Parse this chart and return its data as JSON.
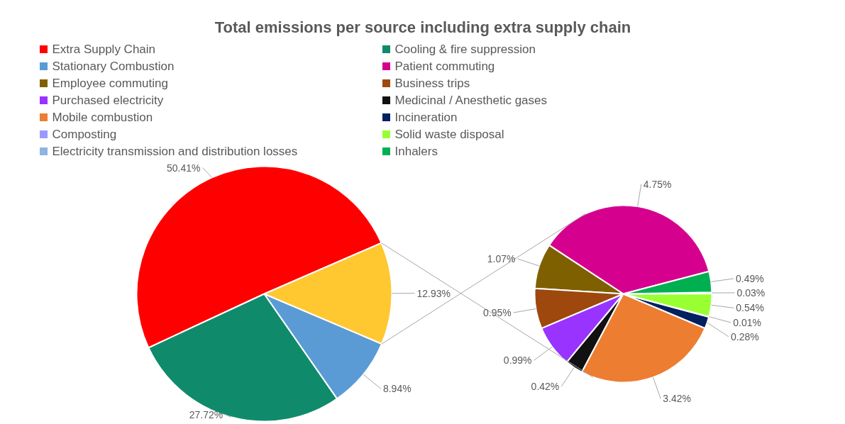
{
  "chart_data": [
    {
      "type": "pie",
      "title": "Total emissions per source including extra supply chain",
      "legend": "top",
      "categories": [
        "Extra Supply Chain",
        "Cooling & fire suppression",
        "Stationary Combustion",
        null
      ],
      "values": [
        50.41,
        27.72,
        8.94,
        12.93
      ],
      "colors": [
        "#ff0000",
        "#0f8b6b",
        "#5b9bd5",
        "#ffc830"
      ],
      "value_labels": [
        "50.41%",
        "27.72%",
        "8.94%",
        "12.93%"
      ]
    },
    {
      "type": "pie",
      "legend": "top",
      "categories": [
        "Patient commuting",
        "Employee commuting",
        "Business trips",
        "Purchased electricity",
        "Medicinal / Anesthetic gases",
        "Mobile combustion",
        "Incineration",
        "Composting",
        "Solid waste disposal",
        "Electricity transmission and distribution losses",
        "Inhalers"
      ],
      "values": [
        4.75,
        1.07,
        0.95,
        0.99,
        0.42,
        3.42,
        0.28,
        0.01,
        0.54,
        0.03,
        0.49
      ],
      "colors": [
        "#d6008f",
        "#7f6000",
        "#9e480e",
        "#9933ff",
        "#111111",
        "#ed7d31",
        "#002060",
        "#9999ff",
        "#99ff33",
        "#8db4e2",
        "#00b050"
      ],
      "value_labels": [
        "4.75%",
        "1.07%",
        "0.95%",
        "0.99%",
        "0.42%",
        "3.42%",
        "0.28%",
        "0.01%",
        "0.54%",
        "0.03%",
        "0.49%"
      ]
    }
  ]
}
